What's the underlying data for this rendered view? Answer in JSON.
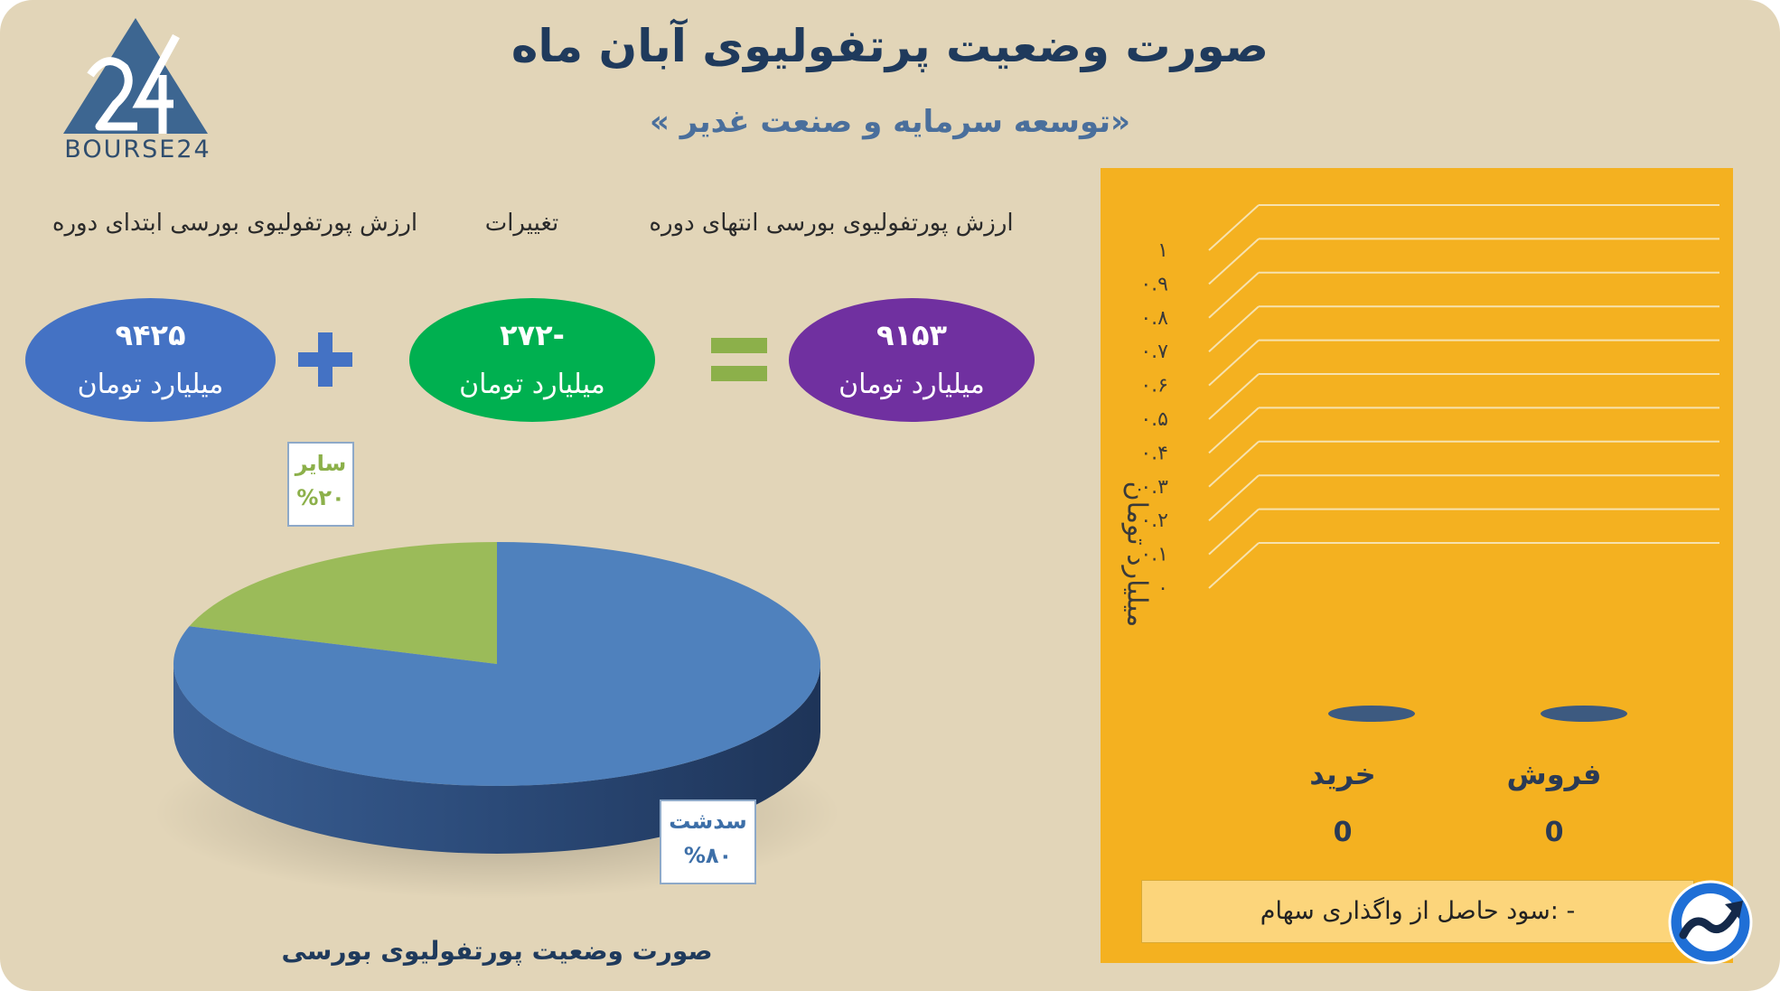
{
  "header": {
    "title": "صورت وضعیت پرتفولیوی آبان ماه",
    "subtitle": "«توسعه سرمایه و صنعت غدیر  »",
    "logo_text": "BOURSE24"
  },
  "summary": {
    "start_label": "ارزش پورتفولیوی بورسی ابتدای دوره",
    "change_label": "تغییرات",
    "end_label": "ارزش پورتفولیوی بورسی انتهای دوره",
    "start_value": "۹۴۲۵",
    "change_value": "-۲۷۲",
    "end_value": "۹۱۵۳",
    "unit": "میلیارد تومان",
    "colors": {
      "start": "#4472c4",
      "change": "#00b050",
      "end": "#7030a0",
      "plus": "#4472c4",
      "equals": "#8cb04a"
    }
  },
  "chart_data": [
    {
      "type": "pie",
      "title": "صورت وضعیت پورتفولیوی بورسی",
      "labels": [
        "سدشت",
        "سایر"
      ],
      "values": [
        80,
        20
      ],
      "value_labels": [
        "%۸۰",
        "%۲۰"
      ],
      "colors": [
        "#4f81bd",
        "#9bbb59"
      ],
      "style": "3d"
    },
    {
      "type": "bar",
      "categories": [
        "خرید",
        "فروش"
      ],
      "values": [
        0,
        0
      ],
      "value_labels": [
        "0",
        "0"
      ],
      "ylabel": "میلیارد تومان",
      "ylim": [
        0,
        1
      ],
      "yticks": [
        "۰",
        "۰.۱",
        "۰.۲",
        "۰.۳",
        "۰.۴",
        "۰.۵",
        "۰.۶",
        "۰.۷",
        "۰.۸",
        "۰.۹",
        "۱"
      ],
      "grid": true,
      "style": "3d",
      "background": "#f4b120",
      "bar_color": "#3d5a80"
    }
  ],
  "footer": {
    "profit_text": "- :سود حاصل از واگذاری سهام",
    "icon": "trend-up-icon"
  }
}
